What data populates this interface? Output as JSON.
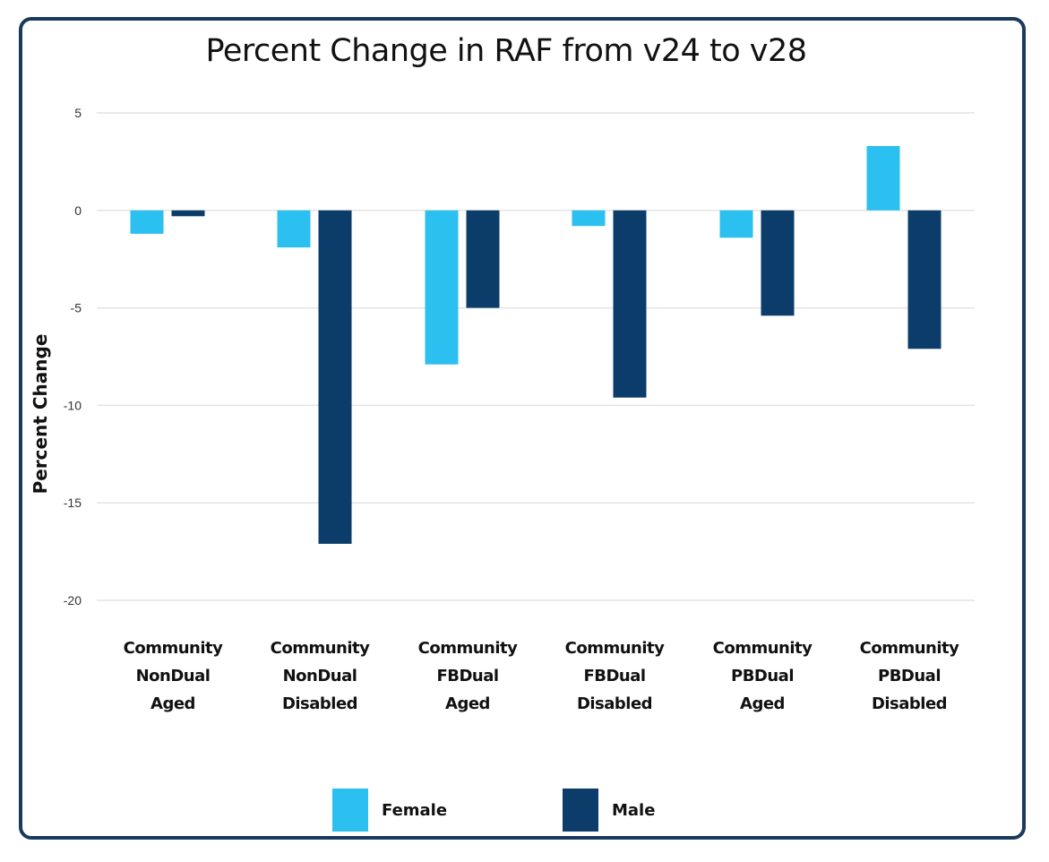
{
  "chart_data": {
    "type": "bar",
    "title": "Percent Change in RAF from v24 to v28",
    "ylabel": "Percent Change",
    "xlabel": "",
    "ylim": [
      -20,
      5
    ],
    "yticks": [
      5,
      0,
      -5,
      -10,
      -15,
      -20
    ],
    "grid": true,
    "legend_position": "bottom",
    "categories": [
      [
        "Community",
        "NonDual",
        "Aged"
      ],
      [
        "Community",
        "NonDual",
        "Disabled"
      ],
      [
        "Community",
        "FBDual",
        "Aged"
      ],
      [
        "Community",
        "FBDual",
        "Disabled"
      ],
      [
        "Community",
        "PBDual",
        "Aged"
      ],
      [
        "Community",
        "PBDual",
        "Disabled"
      ]
    ],
    "series": [
      {
        "name": "Female",
        "color": "#2bc0f0",
        "values": [
          -1.2,
          -1.9,
          -7.9,
          -0.8,
          -1.4,
          3.3
        ]
      },
      {
        "name": "Male",
        "color": "#0c3c69",
        "values": [
          -0.3,
          -17.1,
          -5.0,
          -9.6,
          -5.4,
          -7.1
        ]
      }
    ]
  }
}
